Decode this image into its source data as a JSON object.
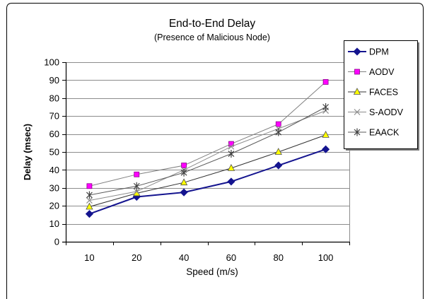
{
  "chart_data": {
    "type": "line",
    "title": "End-to-End Delay",
    "subtitle": "(Presence of Malicious Node)",
    "xlabel": "Speed (m/s)",
    "ylabel": "Delay (msec)",
    "categories": [
      "10",
      "20",
      "40",
      "60",
      "80",
      "100"
    ],
    "ylim": [
      0,
      100
    ],
    "yticks": [
      0,
      10,
      20,
      30,
      40,
      50,
      60,
      70,
      80,
      90,
      100
    ],
    "grid": true,
    "legend_position": "right",
    "series": [
      {
        "name": "DPM",
        "marker": "diamond",
        "color": "#14148f",
        "line_color": "#14148f",
        "values": [
          15.5,
          25,
          27.5,
          33.5,
          42.5,
          51.5
        ]
      },
      {
        "name": "AODV",
        "marker": "square",
        "color": "#ff00ff",
        "edge_color": "#8b008b",
        "line_color": "#808080",
        "values": [
          31,
          37.5,
          42.5,
          54.5,
          65.5,
          89
        ]
      },
      {
        "name": "FACES",
        "marker": "triangle",
        "color": "#ffff00",
        "edge_color": "#4d4d4d",
        "line_color": "#333333",
        "values": [
          19.5,
          27,
          33,
          41,
          50,
          59.5
        ]
      },
      {
        "name": "S-AODV",
        "marker": "x",
        "color": "#8c8c8c",
        "line_color": "#8c8c8c",
        "values": [
          23,
          28,
          40,
          53,
          63,
          73
        ]
      },
      {
        "name": "EAACK",
        "marker": "star",
        "color": "#404040",
        "line_color": "#595959",
        "values": [
          26,
          31,
          38.5,
          49,
          61,
          75
        ]
      }
    ]
  }
}
